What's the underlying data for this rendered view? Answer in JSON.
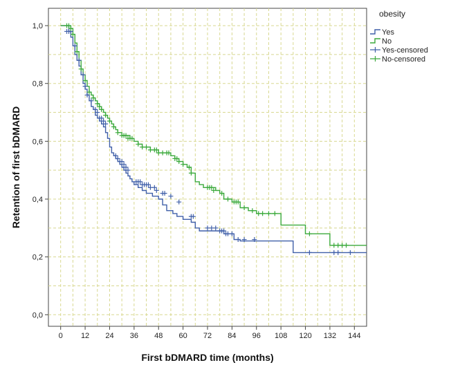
{
  "chart_data": {
    "type": "line",
    "subtype": "kaplan-meier",
    "xlabel": "First bDMARD time (months)",
    "ylabel": "Retention of first bDMARD",
    "xlim": [
      -6,
      150
    ],
    "ylim": [
      -0.04,
      1.06
    ],
    "x_ticks": [
      0,
      12,
      24,
      36,
      48,
      60,
      72,
      84,
      96,
      108,
      120,
      132,
      144
    ],
    "x_tick_labels": [
      "0",
      "12",
      "24",
      "36",
      "48",
      "60",
      "72",
      "84",
      "96",
      "108",
      "120",
      "132",
      "144"
    ],
    "y_ticks": [
      0,
      0.2,
      0.4,
      0.6,
      0.8,
      1.0
    ],
    "y_tick_labels": [
      "0,0",
      "0,2",
      "0,4",
      "0,6",
      "0,8",
      "1,0"
    ],
    "grid": true,
    "legend": {
      "title": "obesity",
      "placement": "right",
      "entries": [
        {
          "label": "Yes",
          "marker": "step",
          "color": "#3f5fa8"
        },
        {
          "label": "No",
          "marker": "step",
          "color": "#3aa93a"
        },
        {
          "label": "Yes-censored",
          "marker": "plus",
          "color": "#3f5fa8"
        },
        {
          "label": "No-censored",
          "marker": "plus",
          "color": "#3aa93a"
        }
      ]
    },
    "series": [
      {
        "name": "Yes",
        "color": "#3f5fa8",
        "x": [
          0,
          3,
          4,
          5,
          6,
          7,
          8,
          9,
          10,
          11,
          12,
          13,
          14,
          15,
          16,
          17,
          18,
          19,
          20,
          21,
          22,
          23,
          24,
          25,
          26,
          27,
          28,
          29,
          30,
          31,
          32,
          33,
          34,
          35,
          36,
          38,
          40,
          42,
          45,
          48,
          50,
          52,
          55,
          57,
          60,
          62,
          64,
          66,
          68,
          70,
          75,
          80,
          85,
          88,
          100,
          114,
          150
        ],
        "y": [
          1.0,
          1.0,
          0.98,
          0.96,
          0.93,
          0.9,
          0.88,
          0.86,
          0.83,
          0.8,
          0.78,
          0.76,
          0.74,
          0.72,
          0.71,
          0.69,
          0.68,
          0.67,
          0.66,
          0.65,
          0.63,
          0.61,
          0.58,
          0.56,
          0.55,
          0.54,
          0.53,
          0.52,
          0.51,
          0.5,
          0.49,
          0.48,
          0.47,
          0.46,
          0.45,
          0.44,
          0.43,
          0.42,
          0.41,
          0.4,
          0.38,
          0.36,
          0.35,
          0.34,
          0.33,
          0.33,
          0.32,
          0.3,
          0.29,
          0.29,
          0.29,
          0.28,
          0.26,
          0.255,
          0.255,
          0.215,
          0.215
        ],
        "censored_x": [
          3,
          4,
          5,
          7,
          9,
          11,
          12,
          13,
          15,
          17,
          18,
          19,
          20,
          21,
          22,
          27,
          28,
          29,
          30,
          31,
          32,
          33,
          37,
          38,
          39,
          40,
          41,
          42,
          43,
          44,
          46,
          47,
          50,
          51,
          54,
          58,
          64,
          65,
          72,
          74,
          76,
          78,
          79,
          80,
          81,
          82,
          84,
          87,
          90,
          95,
          122,
          134,
          136,
          142
        ],
        "censored_y": [
          0.98,
          0.98,
          0.98,
          0.93,
          0.88,
          0.83,
          0.79,
          0.76,
          0.74,
          0.71,
          0.7,
          0.68,
          0.68,
          0.67,
          0.66,
          0.55,
          0.54,
          0.53,
          0.53,
          0.52,
          0.51,
          0.5,
          0.46,
          0.46,
          0.46,
          0.45,
          0.45,
          0.45,
          0.45,
          0.44,
          0.44,
          0.43,
          0.42,
          0.42,
          0.41,
          0.39,
          0.34,
          0.34,
          0.3,
          0.3,
          0.3,
          0.29,
          0.29,
          0.29,
          0.28,
          0.28,
          0.28,
          0.26,
          0.26,
          0.26,
          0.215,
          0.215,
          0.215,
          0.215
        ]
      },
      {
        "name": "No",
        "color": "#3aa93a",
        "x": [
          0,
          4,
          5,
          6,
          7,
          8,
          9,
          10,
          11,
          12,
          13,
          14,
          15,
          16,
          17,
          18,
          19,
          20,
          21,
          22,
          23,
          24,
          25,
          26,
          27,
          28,
          30,
          32,
          34,
          36,
          38,
          40,
          42,
          44,
          46,
          48,
          52,
          54,
          56,
          58,
          60,
          62,
          64,
          66,
          68,
          70,
          72,
          76,
          78,
          80,
          84,
          88,
          92,
          96,
          108,
          120,
          132,
          150
        ],
        "y": [
          1.0,
          1.0,
          0.99,
          0.97,
          0.94,
          0.91,
          0.88,
          0.85,
          0.83,
          0.81,
          0.79,
          0.77,
          0.76,
          0.75,
          0.74,
          0.73,
          0.72,
          0.71,
          0.7,
          0.69,
          0.68,
          0.67,
          0.66,
          0.65,
          0.64,
          0.63,
          0.62,
          0.62,
          0.61,
          0.6,
          0.59,
          0.58,
          0.58,
          0.57,
          0.57,
          0.56,
          0.56,
          0.55,
          0.54,
          0.53,
          0.52,
          0.51,
          0.49,
          0.46,
          0.45,
          0.44,
          0.44,
          0.43,
          0.42,
          0.4,
          0.39,
          0.37,
          0.36,
          0.35,
          0.31,
          0.28,
          0.24,
          0.24
        ],
        "censored_x": [
          3,
          4,
          5,
          6,
          8,
          10,
          12,
          14,
          16,
          18,
          19,
          20,
          22,
          24,
          26,
          28,
          30,
          31,
          32,
          33,
          34,
          35,
          38,
          40,
          42,
          44,
          46,
          47,
          48,
          50,
          52,
          53,
          56,
          57,
          58,
          60,
          63,
          64,
          72,
          73,
          74,
          75,
          79,
          82,
          85,
          86,
          87,
          90,
          94,
          97,
          99,
          102,
          105,
          122,
          134,
          136,
          138,
          140
        ],
        "censored_y": [
          1.0,
          1.0,
          0.99,
          0.97,
          0.91,
          0.85,
          0.81,
          0.77,
          0.75,
          0.73,
          0.72,
          0.71,
          0.69,
          0.67,
          0.65,
          0.63,
          0.62,
          0.62,
          0.62,
          0.61,
          0.61,
          0.61,
          0.59,
          0.58,
          0.58,
          0.57,
          0.57,
          0.57,
          0.56,
          0.56,
          0.56,
          0.56,
          0.54,
          0.54,
          0.53,
          0.52,
          0.51,
          0.49,
          0.44,
          0.44,
          0.44,
          0.43,
          0.42,
          0.4,
          0.39,
          0.39,
          0.39,
          0.37,
          0.36,
          0.35,
          0.35,
          0.35,
          0.35,
          0.28,
          0.24,
          0.24,
          0.24,
          0.24
        ]
      }
    ]
  }
}
